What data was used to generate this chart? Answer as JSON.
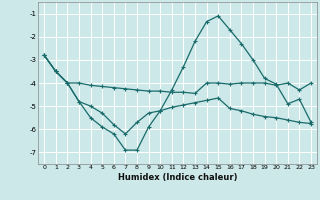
{
  "xlabel": "Humidex (Indice chaleur)",
  "background_color": "#cce8e8",
  "grid_color": "#ffffff",
  "line_color": "#1a6b6b",
  "xlim": [
    -0.5,
    23.5
  ],
  "ylim": [
    -7.5,
    -0.5
  ],
  "yticks": [
    -7,
    -6,
    -5,
    -4,
    -3,
    -2,
    -1
  ],
  "xticks": [
    0,
    1,
    2,
    3,
    4,
    5,
    6,
    7,
    8,
    9,
    10,
    11,
    12,
    13,
    14,
    15,
    16,
    17,
    18,
    19,
    20,
    21,
    22,
    23
  ],
  "line1_x": [
    0,
    1,
    2,
    3,
    4,
    5,
    6,
    7,
    8,
    9,
    10,
    11,
    12,
    13,
    14,
    15,
    16,
    17,
    18,
    19,
    20,
    21,
    22,
    23
  ],
  "line1_y": [
    -2.8,
    -3.5,
    -4.0,
    -4.0,
    -4.1,
    -4.15,
    -4.2,
    -4.25,
    -4.3,
    -4.35,
    -4.35,
    -4.4,
    -4.4,
    -4.45,
    -4.0,
    -4.0,
    -4.05,
    -4.0,
    -4.0,
    -4.0,
    -4.1,
    -4.0,
    -4.3,
    -4.0
  ],
  "line2_x": [
    0,
    1,
    2,
    3,
    4,
    5,
    6,
    7,
    8,
    9,
    10,
    11,
    12,
    13,
    14,
    15,
    16,
    17,
    18,
    19,
    20,
    21,
    22,
    23
  ],
  "line2_y": [
    -2.8,
    -3.5,
    -4.0,
    -4.8,
    -5.5,
    -5.9,
    -6.2,
    -6.9,
    -6.9,
    -5.9,
    -5.2,
    -4.3,
    -3.3,
    -2.2,
    -1.35,
    -1.1,
    -1.7,
    -2.3,
    -3.0,
    -3.8,
    -4.05,
    -4.9,
    -4.7,
    -5.7
  ],
  "line3_x": [
    0,
    1,
    2,
    3,
    4,
    5,
    6,
    7,
    8,
    9,
    10,
    11,
    12,
    13,
    14,
    15,
    16,
    17,
    18,
    19,
    20,
    21,
    22,
    23
  ],
  "line3_y": [
    -2.8,
    -3.5,
    -4.0,
    -4.8,
    -5.0,
    -5.3,
    -5.8,
    -6.2,
    -5.7,
    -5.3,
    -5.2,
    -5.05,
    -4.95,
    -4.85,
    -4.75,
    -4.65,
    -5.1,
    -5.2,
    -5.35,
    -5.45,
    -5.5,
    -5.6,
    -5.7,
    -5.75
  ]
}
